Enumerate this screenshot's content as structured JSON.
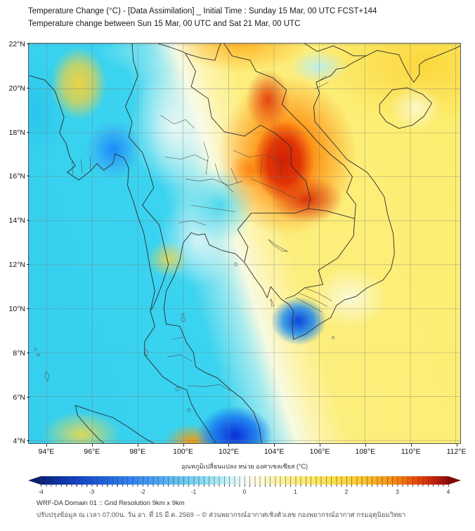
{
  "header": {
    "title_line1": "Temperature Change (°C) - [Data Assimilation] _ Initial Time : Sunday 15 Mar, 00 UTC FCST+144",
    "title_line2": "Temperature change between Sun 15 Mar, 00 UTC and Sat 21 Mar, 00 UTC"
  },
  "map": {
    "y_axis_labels": [
      "22°N",
      "20°N",
      "18°N",
      "16°N",
      "14°N",
      "12°N",
      "10°N",
      "8°N",
      "6°N",
      "4°N"
    ],
    "x_axis_labels": [
      "94°E",
      "96°E",
      "98°E",
      "100°E",
      "102°E",
      "104°E",
      "106°E",
      "108°E",
      "110°E",
      "112°E"
    ],
    "lon_range_deg_e": [
      93.2,
      112.2
    ],
    "lat_range_deg_n": [
      3.9,
      22.06
    ],
    "grid_interval_deg": 2,
    "anomaly_centers": [
      {
        "area": "Central Laos / Vietnam border (core warming)",
        "lon_e": 104.4,
        "lat_n": 16.7,
        "value_c": "+4"
      },
      {
        "area": "Northern Laos warm arm",
        "lon_e": 103.7,
        "lat_n": 19.5,
        "value_c": "+3"
      },
      {
        "area": "Southern Laos warm lobe",
        "lon_e": 105.4,
        "lat_n": 15.0,
        "value_c": "+3"
      },
      {
        "area": "Northeast Thailand",
        "lon_e": 103.0,
        "lat_n": 16.3,
        "value_c": "+2.5"
      },
      {
        "area": "Mekong Delta (cooling)",
        "lon_e": 105.0,
        "lat_n": 9.5,
        "value_c": "-3"
      },
      {
        "area": "South near Malaysia (cooling)",
        "lon_e": 102.2,
        "lat_n": 4.3,
        "value_c": "-3.5"
      },
      {
        "area": "Gulf of Martaban (cooling)",
        "lon_e": 96.9,
        "lat_n": 17.3,
        "value_c": "-1.5"
      },
      {
        "area": "Central Myanmar warm blob",
        "lon_e": 95.4,
        "lat_n": 20.3,
        "value_c": "+1"
      },
      {
        "area": "Strait of Malacca warm spot",
        "lon_e": 100.3,
        "lat_n": 4.0,
        "value_c": "+2"
      },
      {
        "area": "Andaman Sea / Gulf of Thailand broad",
        "value_c": "-0.5 to -1"
      },
      {
        "area": "East side / Hainan & sea broad",
        "value_c": "+0.5 to +1.5"
      }
    ]
  },
  "colorbar": {
    "label": "อุณหภูมิเปลี่ยนแปลง หน่วย องศาเซลเซียส (°C)",
    "tick_labels": [
      "-4",
      "-3",
      "-2",
      "-1",
      "0",
      "1",
      "2",
      "3",
      "4"
    ],
    "min": -4,
    "max": 4,
    "step_per_cell": 0.1,
    "color_min_hex": "#0a1f6e",
    "color_zero_hex": "#f8fcf4",
    "color_max_hex": "#7e0a04"
  },
  "footer": {
    "line1": "WRF-DA Domain 01 :: Grid Resolution 9km x 9km",
    "line2": "ปรับปรุงข้อมูล ณ เวลา 07:00น. วัน อา. ที่ 15 มี.ค. 2569 -- © ส่วนพยากรณ์อากาศเชิงตัวเลข กองพยากรณ์อากาศ กรมอุตุนิยมวิทยา"
  }
}
